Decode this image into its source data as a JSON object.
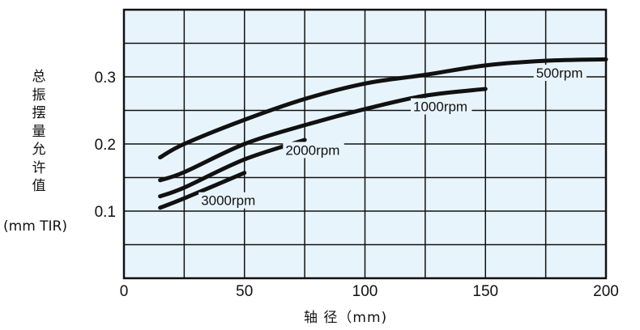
{
  "chart_data": {
    "type": "line",
    "title": "",
    "xlabel": "轴 径（mm)",
    "ylabel": "总振摆量允许值",
    "ylabel_unit": "(mm TIR)",
    "xlim": [
      0,
      200
    ],
    "ylim": [
      0,
      0.4
    ],
    "x_ticks": [
      "0",
      "50",
      "100",
      "150",
      "200"
    ],
    "y_ticks": [
      "0.1",
      "0.2",
      "0.3"
    ],
    "grid": true,
    "background_color": "#e8f4fc",
    "line_color": "#111111",
    "series": [
      {
        "name": "500rpm",
        "x": [
          15,
          25,
          50,
          75,
          100,
          125,
          150,
          175,
          200
        ],
        "y": [
          0.18,
          0.2,
          0.236,
          0.267,
          0.29,
          0.303,
          0.317,
          0.324,
          0.326
        ]
      },
      {
        "name": "1000rpm",
        "x": [
          15,
          25,
          50,
          75,
          100,
          125,
          150
        ],
        "y": [
          0.146,
          0.158,
          0.2,
          0.228,
          0.252,
          0.272,
          0.282
        ]
      },
      {
        "name": "2000rpm",
        "x": [
          15,
          25,
          50,
          75
        ],
        "y": [
          0.122,
          0.135,
          0.177,
          0.206
        ]
      },
      {
        "name": "3000rpm",
        "x": [
          15,
          25,
          50
        ],
        "y": [
          0.105,
          0.119,
          0.157
        ]
      }
    ]
  }
}
